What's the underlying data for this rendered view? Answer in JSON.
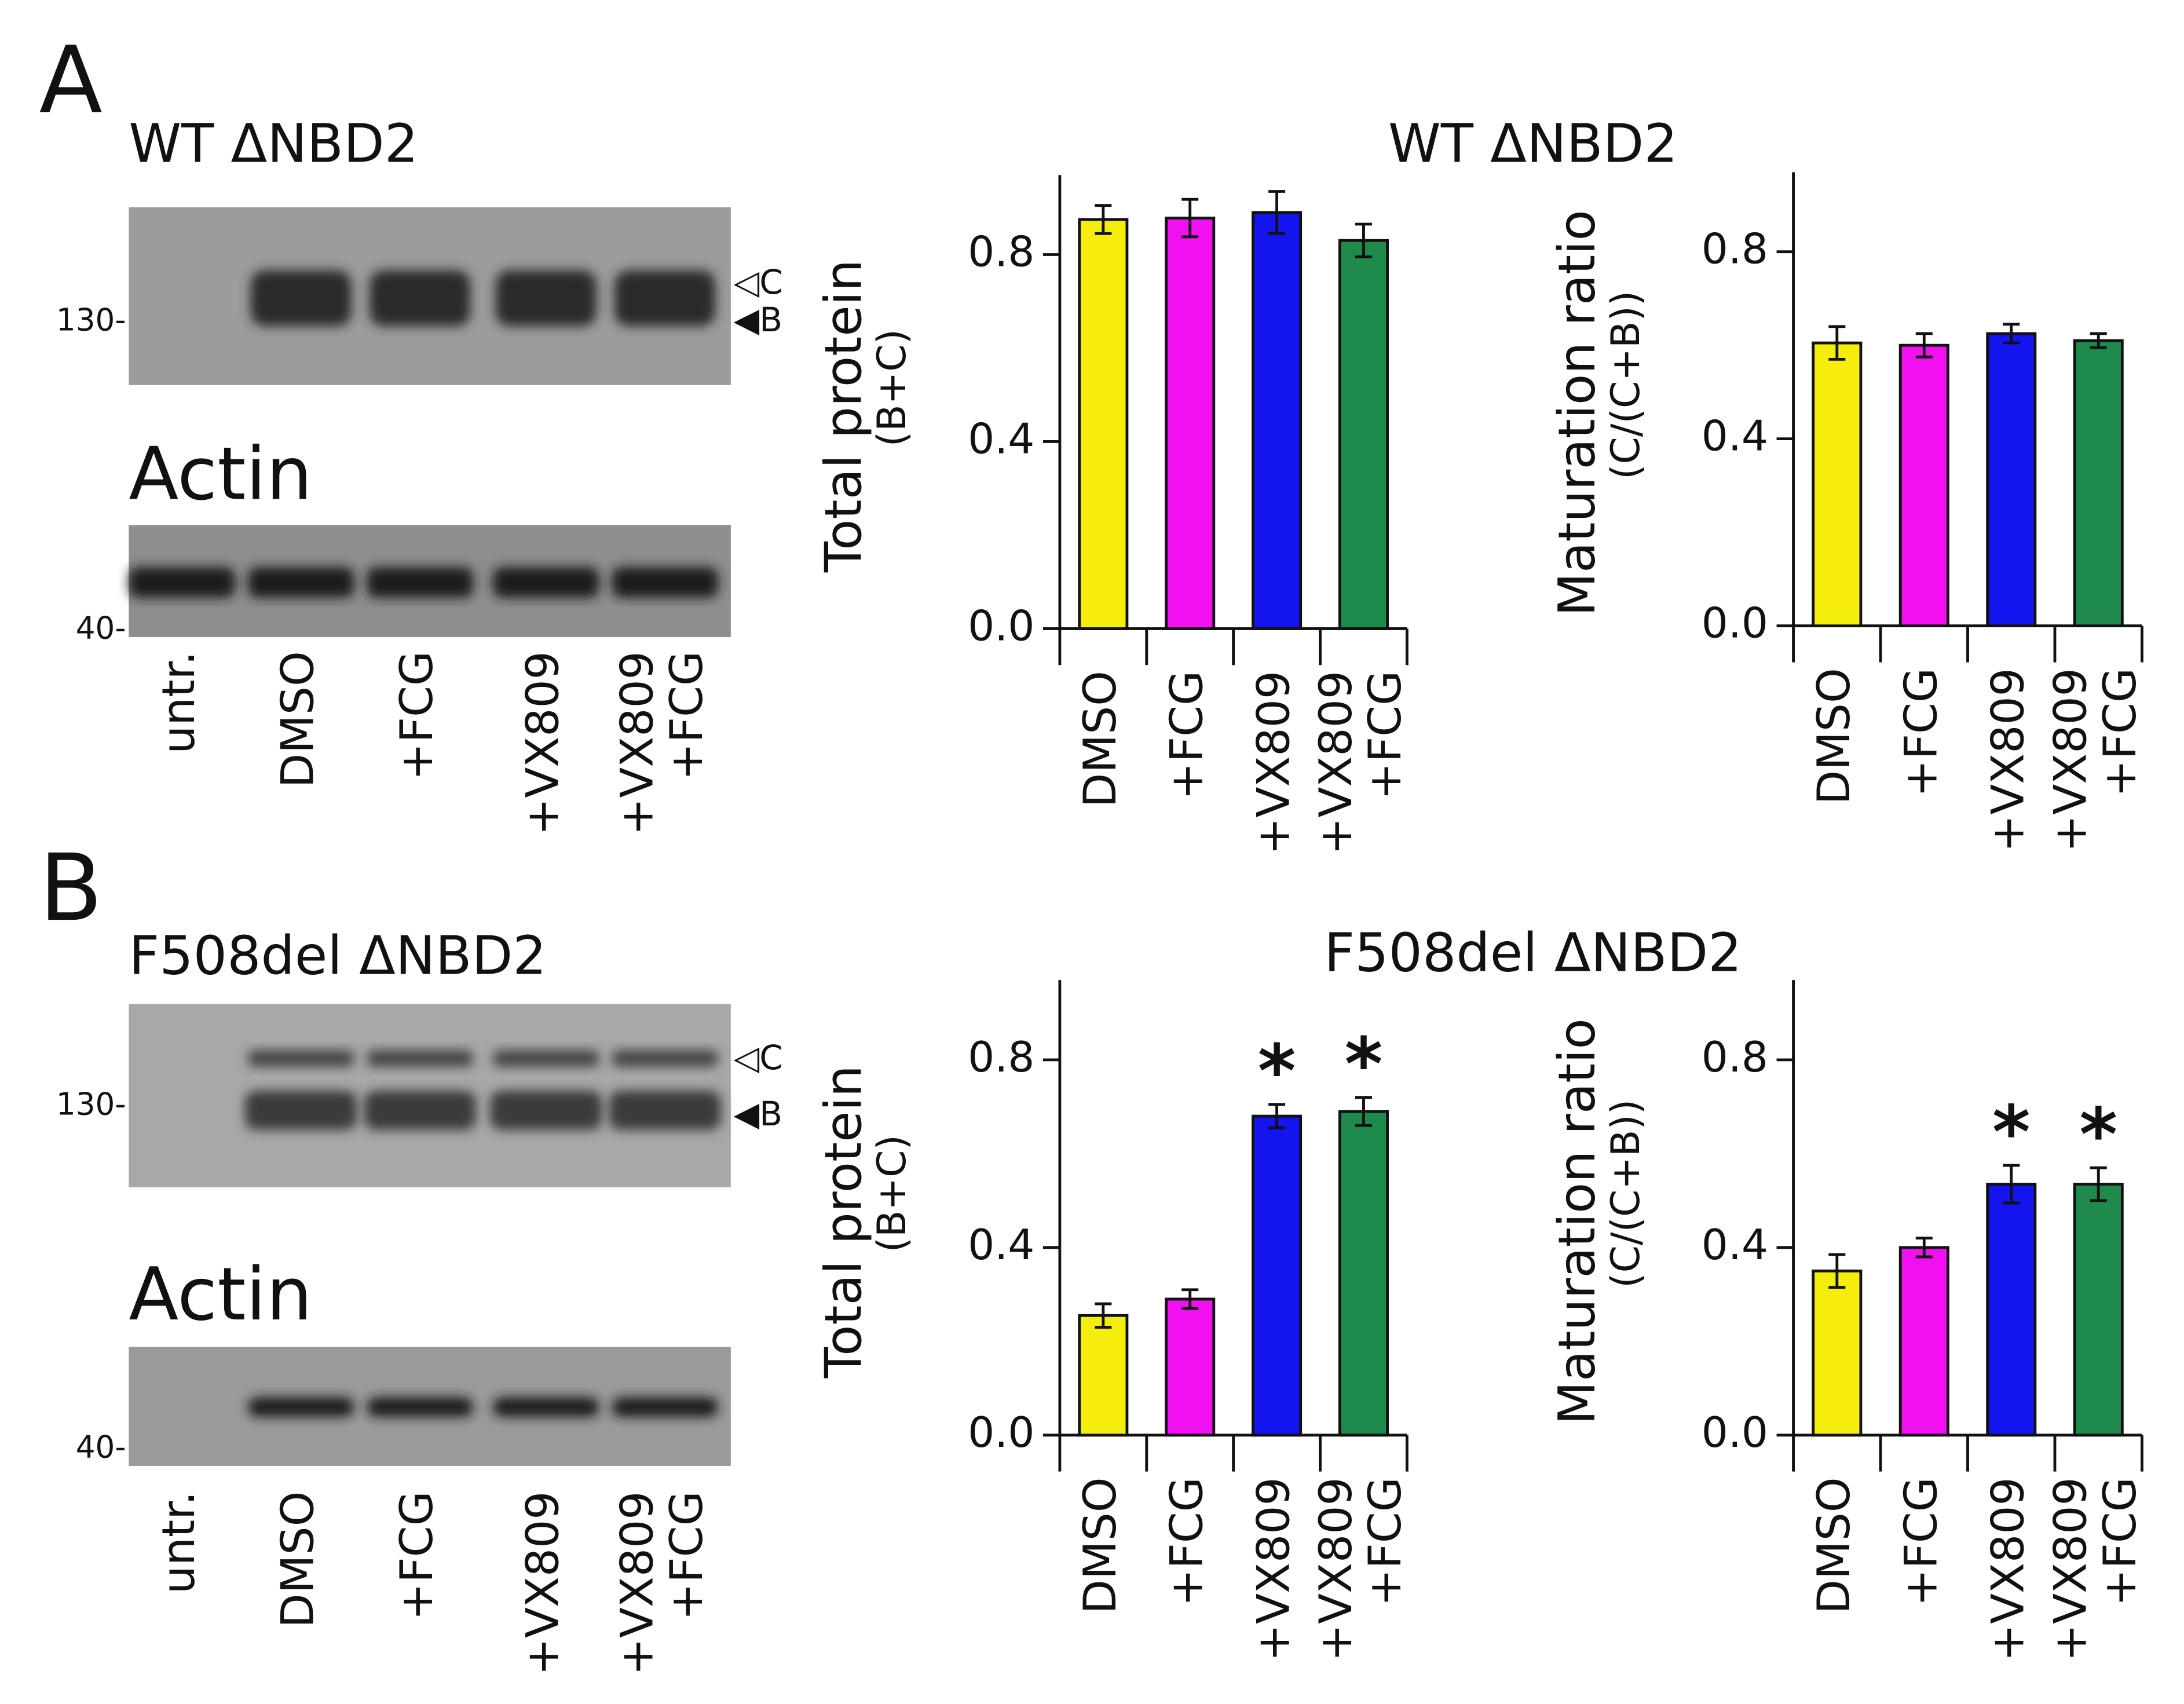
{
  "panels": [
    {
      "label": "A",
      "blot_title": "WT ΔNBD2",
      "markers": [
        "130-",
        "40-"
      ],
      "bands": [
        "◁C",
        "◀B"
      ],
      "actin_title": "Actin",
      "lanes": [
        "untr.",
        "DMSO",
        "+FCG",
        "+VX809",
        "+VX809\n+FCG"
      ],
      "chart_title": "WT ΔNBD2"
    },
    {
      "label": "B",
      "blot_title": "F508del ΔNBD2",
      "markers": [
        "130-",
        "40-"
      ],
      "bands": [
        "◁C",
        "◀B"
      ],
      "actin_title": "Actin",
      "lanes": [
        "untr.",
        "DMSO",
        "+FCG",
        "+VX809",
        "+VX809\n+FCG"
      ],
      "chart_title": "F508del ΔNBD2"
    }
  ],
  "chart_data": [
    {
      "type": "bar",
      "ylabel": "Total protein",
      "ysublabel": "(B+C)",
      "categories": [
        "DMSO",
        "+FCG",
        "+VX809",
        "+VX809\n+FCG"
      ],
      "values": [
        0.875,
        0.878,
        0.89,
        0.83
      ],
      "errors": [
        0.03,
        0.04,
        0.045,
        0.035
      ],
      "colors": [
        "#f5ee0c",
        "#f010f0",
        "#1414f0",
        "#1e8a4c"
      ],
      "ylim": [
        0,
        0.97
      ],
      "yticks": [
        {
          "value": 0,
          "label": "0.0"
        },
        0.4,
        0.8
      ]
    },
    {
      "type": "bar",
      "ylabel": "Maturation ratio",
      "ysublabel": "(C/(C+B))",
      "categories": [
        "DMSO",
        "+FCG",
        "+VX809",
        "+VX809\n+FCG"
      ],
      "values": [
        0.605,
        0.6,
        0.625,
        0.61
      ],
      "errors": [
        0.035,
        0.025,
        0.02,
        0.015
      ],
      "colors": [
        "#f5ee0c",
        "#f010f0",
        "#1414f0",
        "#1e8a4c"
      ],
      "ylim": [
        0,
        0.97
      ],
      "yticks": [
        {
          "value": 0,
          "label": "0.0"
        },
        0.4,
        0.8
      ]
    },
    {
      "type": "bar",
      "ylabel": "Total protein",
      "ysublabel": "(B+C)",
      "categories": [
        "DMSO",
        "+FCG",
        "+VX809",
        "+VX809\n+FCG"
      ],
      "values": [
        0.255,
        0.29,
        0.68,
        0.69
      ],
      "errors": [
        0.025,
        0.02,
        0.025,
        0.03
      ],
      "colors": [
        "#f5ee0c",
        "#f010f0",
        "#1414f0",
        "#1e8a4c"
      ],
      "ylim": [
        0,
        0.97
      ],
      "yticks": [
        {
          "value": 0,
          "label": "0.0"
        },
        0.4,
        0.8
      ],
      "annotations": [
        {
          "index": 2,
          "text": "*"
        },
        {
          "index": 3,
          "text": "*"
        }
      ]
    },
    {
      "type": "bar",
      "ylabel": "Maturation ratio",
      "ysublabel": "(C/(C+B))",
      "categories": [
        "DMSO",
        "+FCG",
        "+VX809",
        "+VX809\n+FCG"
      ],
      "values": [
        0.35,
        0.4,
        0.535,
        0.535
      ],
      "errors": [
        0.035,
        0.02,
        0.04,
        0.035
      ],
      "colors": [
        "#f5ee0c",
        "#f010f0",
        "#1414f0",
        "#1e8a4c"
      ],
      "ylim": [
        0,
        0.97
      ],
      "yticks": [
        {
          "value": 0,
          "label": "0.0"
        },
        0.4,
        0.8
      ],
      "annotations": [
        {
          "index": 2,
          "text": "*"
        },
        {
          "index": 3,
          "text": "*"
        }
      ]
    }
  ]
}
